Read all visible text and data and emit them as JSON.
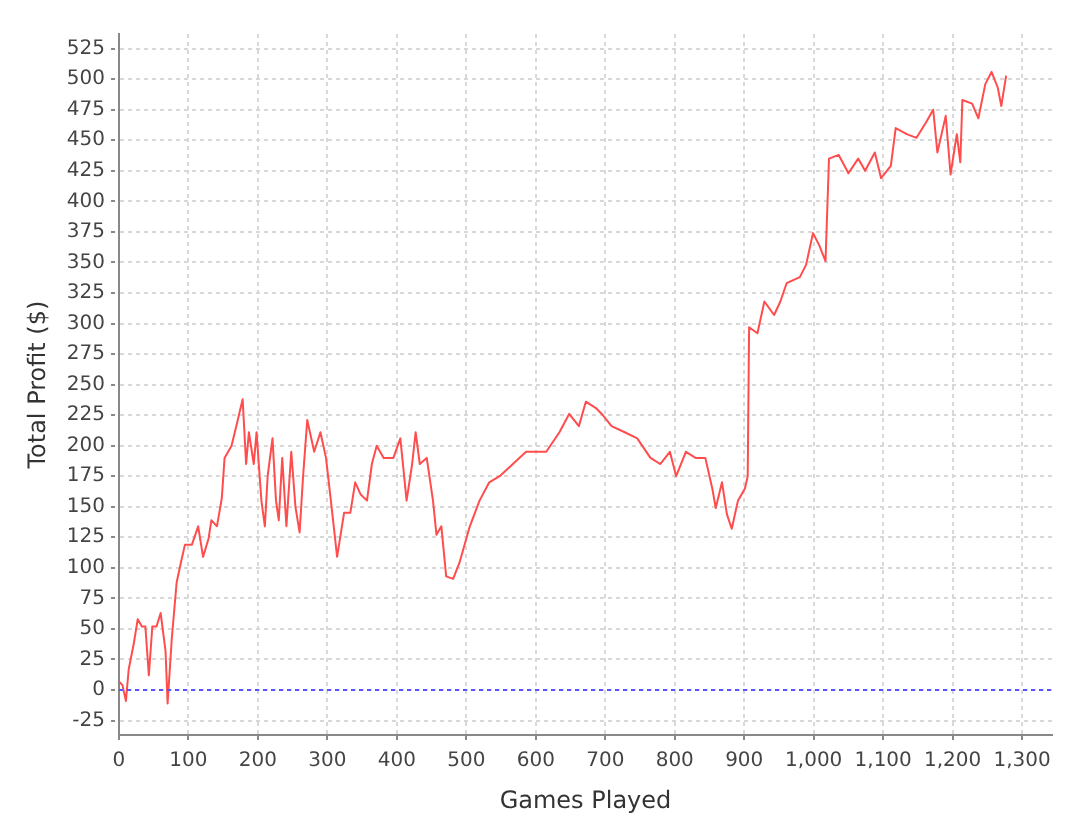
{
  "chart_data": {
    "type": "line",
    "xlabel": "Games Played",
    "ylabel": "Total Profit ($)",
    "series": [
      {
        "color": "#ff4d4d",
        "x": [
          0,
          5,
          10,
          14,
          21,
          27,
          33,
          38,
          43,
          48,
          54,
          60,
          67,
          70,
          76,
          83,
          89,
          95,
          105,
          114,
          121,
          129,
          133,
          141,
          148,
          152,
          162,
          171,
          178,
          183,
          187,
          194,
          198,
          205,
          210,
          214,
          221,
          226,
          230,
          235,
          241,
          248,
          254,
          260,
          265,
          271,
          281,
          290,
          298,
          305,
          314,
          324,
          333,
          340,
          348,
          357,
          364,
          371,
          381,
          395,
          405,
          414,
          422,
          427,
          433,
          443,
          452,
          457,
          464,
          471,
          481,
          490,
          505,
          519,
          533,
          548,
          567,
          586,
          605,
          615,
          634,
          648,
          662,
          672,
          686,
          695,
          709,
          728,
          746,
          765,
          779,
          793,
          802,
          816,
          830,
          844,
          854,
          859,
          868,
          875,
          882,
          891,
          901,
          905,
          907,
          919,
          929,
          943,
          952,
          961,
          980,
          989,
          999,
          1008,
          1017,
          1022,
          1036,
          1050,
          1064,
          1074,
          1088,
          1097,
          1111,
          1118,
          1134,
          1148,
          1162,
          1172,
          1178,
          1190,
          1197,
          1206,
          1211,
          1214,
          1228,
          1237,
          1247,
          1256,
          1265,
          1270,
          1277
        ],
        "values": [
          7,
          4,
          -9,
          17,
          37,
          58,
          52,
          52,
          12,
          52,
          52,
          63,
          32,
          -11,
          42,
          88,
          104,
          119,
          119,
          134,
          109,
          124,
          139,
          134,
          157,
          190,
          200,
          221,
          238,
          185,
          211,
          185,
          211,
          155,
          134,
          175,
          206,
          155,
          139,
          190,
          134,
          195,
          150,
          129,
          175,
          221,
          195,
          211,
          190,
          155,
          109,
          145,
          145,
          170,
          160,
          155,
          185,
          200,
          190,
          190,
          206,
          155,
          185,
          211,
          185,
          190,
          155,
          127,
          134,
          93,
          91,
          104,
          134,
          155,
          170,
          175,
          185,
          195,
          195,
          195,
          211,
          226,
          216,
          236,
          231,
          226,
          216,
          211,
          206,
          190,
          185,
          195,
          175,
          195,
          190,
          190,
          165,
          149,
          170,
          144,
          132,
          155,
          165,
          175,
          297,
          292,
          318,
          307,
          318,
          333,
          338,
          348,
          374,
          364,
          351,
          435,
          438,
          423,
          435,
          425,
          440,
          419,
          429,
          460,
          455,
          452,
          465,
          475,
          440,
          470,
          422,
          455,
          432,
          483,
          480,
          468,
          496,
          506,
          493,
          478,
          503
        ]
      }
    ],
    "xlim": [
      0,
      1343
    ],
    "xticks": [
      0,
      100,
      200,
      300,
      400,
      500,
      600,
      700,
      800,
      900,
      {
        "value": 1000,
        "label": "1,000"
      },
      {
        "value": 1100,
        "label": "1,100"
      },
      {
        "value": 1200,
        "label": "1,200"
      },
      {
        "value": 1300,
        "label": "1,300"
      }
    ],
    "ylim": [
      -37,
      537
    ],
    "yticks": [
      -25,
      0,
      25,
      50,
      75,
      100,
      125,
      150,
      175,
      200,
      225,
      250,
      275,
      300,
      325,
      350,
      375,
      400,
      425,
      450,
      475,
      500,
      525
    ],
    "grid": true,
    "legend": false,
    "marker": "none",
    "line_style": "solid",
    "ref_lines": [
      {
        "axis": "y",
        "value": 0,
        "color": "#5555ff",
        "line_style": "dotted"
      }
    ]
  }
}
